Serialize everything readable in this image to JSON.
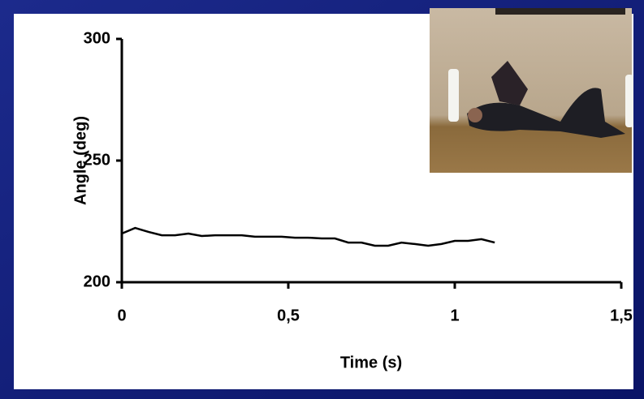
{
  "chart_data": {
    "type": "line",
    "xlabel": "Time (s)",
    "ylabel": "Angle (deg)",
    "x": [
      0,
      0.04,
      0.08,
      0.12,
      0.16,
      0.2,
      0.24,
      0.28,
      0.32,
      0.36,
      0.4,
      0.44,
      0.48,
      0.52,
      0.56,
      0.6,
      0.64,
      0.68,
      0.72,
      0.76,
      0.8,
      0.84,
      0.88,
      0.92,
      0.96,
      1.0,
      1.04,
      1.08,
      1.12
    ],
    "values": [
      220,
      222.3,
      220.7,
      219.3,
      219.3,
      220,
      219,
      219.3,
      219.3,
      219.3,
      218.7,
      218.7,
      218.7,
      218.3,
      218.3,
      218,
      218,
      216.3,
      216.3,
      215,
      215,
      216.3,
      215.7,
      215,
      215.7,
      217,
      217,
      217.7,
      216.3
    ],
    "color": "#000000",
    "xlim": [
      0,
      1.5
    ],
    "xticks": [
      0,
      {
        "value": 0.5,
        "label": "0,5"
      },
      1,
      {
        "value": 1.5,
        "label": "1,5"
      }
    ],
    "ylim": [
      200,
      300
    ],
    "yticks": [
      200,
      250,
      300
    ]
  }
}
